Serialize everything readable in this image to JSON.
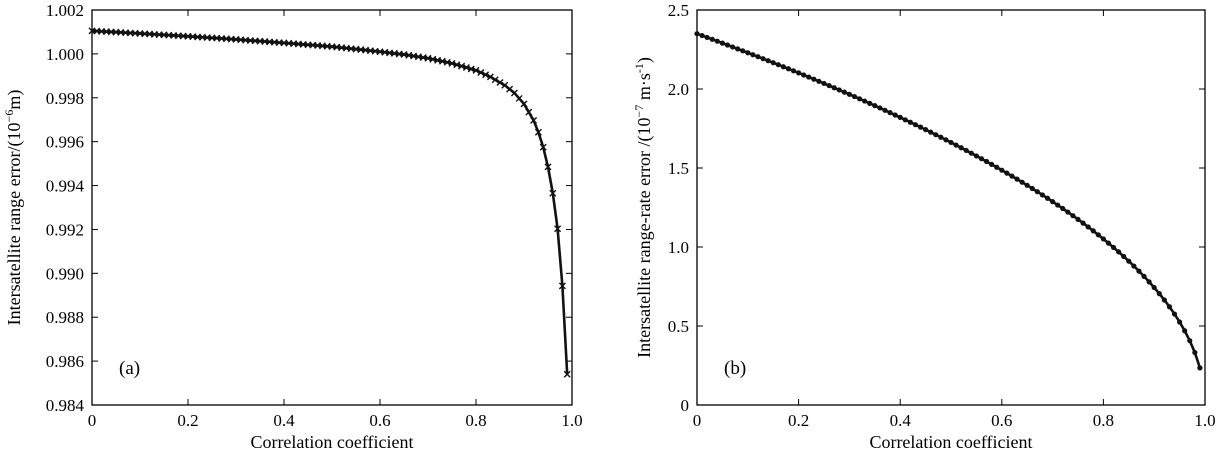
{
  "chart_data": [
    {
      "id": "a",
      "type": "line",
      "panel_label": "(a)",
      "title": "",
      "xlabel": "Correlation coefficient",
      "ylabel_text": "Intersatellite range error/(10",
      "ylabel_exp": "−6",
      "ylabel_unit": "m)",
      "marker": "x",
      "xlim": [
        0,
        1.0
      ],
      "ylim": [
        0.984,
        1.002
      ],
      "xticks": [
        0,
        0.2,
        0.4,
        0.6,
        0.8,
        1.0
      ],
      "xtick_labels": [
        "0",
        "0.2",
        "0.4",
        "0.6",
        "0.8",
        "1.0"
      ],
      "yticks": [
        0.984,
        0.986,
        0.988,
        0.99,
        0.992,
        0.994,
        0.996,
        0.998,
        1.0,
        1.002
      ],
      "ytick_labels": [
        "0.984",
        "0.986",
        "0.988",
        "0.990",
        "0.992",
        "0.994",
        "0.996",
        "0.998",
        "1.000",
        "1.002"
      ],
      "series": [
        {
          "x": [
            0,
            0.1,
            0.2,
            0.3,
            0.4,
            0.5,
            0.6,
            0.65,
            0.7,
            0.75,
            0.8,
            0.83,
            0.86,
            0.88,
            0.9,
            0.92,
            0.93,
            0.94,
            0.95,
            0.96,
            0.965,
            0.97,
            0.975,
            0.98,
            0.985,
            0.99
          ],
          "values": [
            1.00105,
            1.00093,
            1.0008,
            1.00066,
            1.0005,
            1.00033,
            1.0001,
            0.99997,
            0.9998,
            0.99957,
            0.99925,
            0.99895,
            0.99857,
            0.99822,
            0.99772,
            0.99697,
            0.99643,
            0.99575,
            0.99485,
            0.99365,
            0.9929,
            0.99203,
            0.991,
            0.98943,
            0.9876,
            0.9854
          ]
        }
      ]
    },
    {
      "id": "b",
      "type": "line",
      "panel_label": "(b)",
      "title": "",
      "xlabel": "Correlation coefficient",
      "ylabel_text": "Intersatellite range-rate error /(10",
      "ylabel_exp": "−7",
      "ylabel_unit": " m·s",
      "ylabel_exp2": "-1",
      "ylabel_close": ")",
      "marker": "dot",
      "xlim": [
        0,
        1.0
      ],
      "ylim": [
        0,
        2.5
      ],
      "xticks": [
        0,
        0.2,
        0.4,
        0.6,
        0.8,
        1.0
      ],
      "xtick_labels": [
        "0",
        "0.2",
        "0.4",
        "0.6",
        "0.8",
        "1.0"
      ],
      "yticks": [
        0,
        0.5,
        1.0,
        1.5,
        2.0,
        2.5
      ],
      "ytick_labels": [
        "0",
        "0.5",
        "1.0",
        "1.5",
        "2.0",
        "2.5"
      ],
      "series": [
        {
          "function": "a*sqrt(1-x)",
          "a": 2.35,
          "x_start": 0,
          "x_end": 0.99,
          "x_step": 0.01
        }
      ]
    }
  ]
}
